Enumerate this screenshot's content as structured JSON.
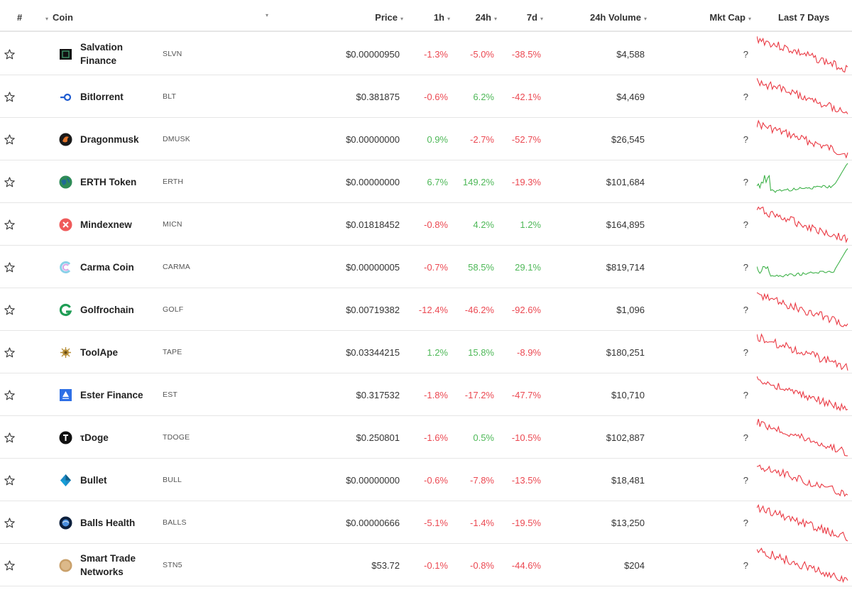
{
  "header": {
    "rank": "#",
    "coin": "Coin",
    "price": "Price",
    "h1": "1h",
    "h24": "24h",
    "d7": "7d",
    "volume": "24h Volume",
    "mcap": "Mkt Cap",
    "last7": "Last 7 Days"
  },
  "colors": {
    "negative": "#ea3943",
    "positive": "#3fb24a",
    "border": "#e6e6e6"
  },
  "rows": [
    {
      "name": "Salvation Finance",
      "symbol": "SLVN",
      "price": "$0.00000950",
      "h1": "-1.3%",
      "h24": "-5.0%",
      "d7": "-38.5%",
      "volume": "$4,588",
      "mcap": "?",
      "logo": "salvation-logo-icon",
      "trend": "down"
    },
    {
      "name": "Bitlorrent",
      "symbol": "BLT",
      "price": "$0.381875",
      "h1": "-0.6%",
      "h24": "6.2%",
      "d7": "-42.1%",
      "volume": "$4,469",
      "mcap": "?",
      "logo": "bitlorrent-logo-icon",
      "trend": "down"
    },
    {
      "name": "Dragonmusk",
      "symbol": "DMUSK",
      "price": "$0.00000000",
      "h1": "0.9%",
      "h24": "-2.7%",
      "d7": "-52.7%",
      "volume": "$26,545",
      "mcap": "?",
      "logo": "dragonmusk-logo-icon",
      "trend": "down"
    },
    {
      "name": "ERTH Token",
      "symbol": "ERTH",
      "price": "$0.00000000",
      "h1": "6.7%",
      "h24": "149.2%",
      "d7": "-19.3%",
      "volume": "$101,684",
      "mcap": "?",
      "logo": "erth-logo-icon",
      "trend": "up"
    },
    {
      "name": "Mindexnew",
      "symbol": "MICN",
      "price": "$0.01818452",
      "h1": "-0.8%",
      "h24": "4.2%",
      "d7": "1.2%",
      "volume": "$164,895",
      "mcap": "?",
      "logo": "mindexnew-logo-icon",
      "trend": "down"
    },
    {
      "name": "Carma Coin",
      "symbol": "CARMA",
      "price": "$0.00000005",
      "h1": "-0.7%",
      "h24": "58.5%",
      "d7": "29.1%",
      "volume": "$819,714",
      "mcap": "?",
      "logo": "carma-logo-icon",
      "trend": "up"
    },
    {
      "name": "Golfrochain",
      "symbol": "GOLF",
      "price": "$0.00719382",
      "h1": "-12.4%",
      "h24": "-46.2%",
      "d7": "-92.6%",
      "volume": "$1,096",
      "mcap": "?",
      "logo": "golfrochain-logo-icon",
      "trend": "down"
    },
    {
      "name": "ToolApe",
      "symbol": "TAPE",
      "price": "$0.03344215",
      "h1": "1.2%",
      "h24": "15.8%",
      "d7": "-8.9%",
      "volume": "$180,251",
      "mcap": "?",
      "logo": "toolape-logo-icon",
      "trend": "down"
    },
    {
      "name": "Ester Finance",
      "symbol": "EST",
      "price": "$0.317532",
      "h1": "-1.8%",
      "h24": "-17.2%",
      "d7": "-47.7%",
      "volume": "$10,710",
      "mcap": "?",
      "logo": "ester-logo-icon",
      "trend": "down"
    },
    {
      "name": "τDoge",
      "symbol": "TDOGE",
      "price": "$0.250801",
      "h1": "-1.6%",
      "h24": "0.5%",
      "d7": "-10.5%",
      "volume": "$102,887",
      "mcap": "?",
      "logo": "tdoge-logo-icon",
      "trend": "down"
    },
    {
      "name": "Bullet",
      "symbol": "BULL",
      "price": "$0.00000000",
      "h1": "-0.6%",
      "h24": "-7.8%",
      "d7": "-13.5%",
      "volume": "$18,481",
      "mcap": "?",
      "logo": "bullet-logo-icon",
      "trend": "down"
    },
    {
      "name": "Balls Health",
      "symbol": "BALLS",
      "price": "$0.00000666",
      "h1": "-5.1%",
      "h24": "-1.4%",
      "d7": "-19.5%",
      "volume": "$13,250",
      "mcap": "?",
      "logo": "balls-logo-icon",
      "trend": "down"
    },
    {
      "name": "Smart Trade Networks",
      "symbol": "STN5",
      "price": "$53.72",
      "h1": "-0.1%",
      "h24": "-0.8%",
      "d7": "-44.6%",
      "volume": "$204",
      "mcap": "?",
      "logo": "stn5-logo-icon",
      "trend": "down"
    }
  ]
}
